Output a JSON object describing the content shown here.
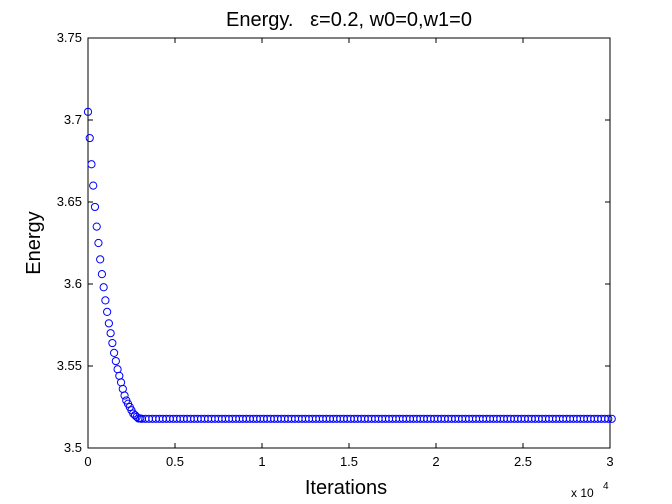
{
  "chart_data": {
    "type": "scatter",
    "title": "Energy.   ε=0.2, w0=0,w1=0",
    "xlabel": "Iterations",
    "ylabel": "Energy",
    "x_multiplier_base": "x 10",
    "x_multiplier_exponent": "4",
    "xlim": [
      0,
      3
    ],
    "ylim": [
      3.5,
      3.75
    ],
    "xticks": [
      0,
      0.5,
      1,
      1.5,
      2,
      2.5,
      3
    ],
    "xtick_labels": [
      "0",
      "0.5",
      "1",
      "1.5",
      "2",
      "2.5",
      "3"
    ],
    "yticks": [
      3.5,
      3.55,
      3.6,
      3.65,
      3.7,
      3.75
    ],
    "ytick_labels": [
      "3.5",
      "3.55",
      "3.6",
      "3.65",
      "3.7",
      "3.75"
    ],
    "grid": false,
    "marker": "circle",
    "marker_color": "#0000ff",
    "series": [
      {
        "x": [
          0,
          0.01,
          0.02,
          0.03,
          0.04,
          0.05,
          0.06,
          0.07,
          0.08,
          0.09,
          0.1,
          0.11,
          0.12,
          0.13,
          0.14,
          0.15,
          0.16,
          0.17,
          0.18,
          0.19,
          0.2,
          0.21,
          0.22,
          0.23,
          0.24,
          0.25,
          0.26,
          0.27,
          0.28,
          0.29,
          0.3
        ],
        "y": [
          3.705,
          3.689,
          3.673,
          3.66,
          3.647,
          3.635,
          3.625,
          3.615,
          3.606,
          3.598,
          3.59,
          3.583,
          3.576,
          3.57,
          3.564,
          3.558,
          3.553,
          3.548,
          3.544,
          3.54,
          3.536,
          3.532,
          3.529,
          3.527,
          3.525,
          3.523,
          3.521,
          3.52,
          3.519,
          3.518,
          3.518
        ]
      }
    ],
    "plateau": {
      "x_start": 0.31,
      "x_end": 3.0,
      "step": 0.02,
      "y": 3.5178
    }
  }
}
